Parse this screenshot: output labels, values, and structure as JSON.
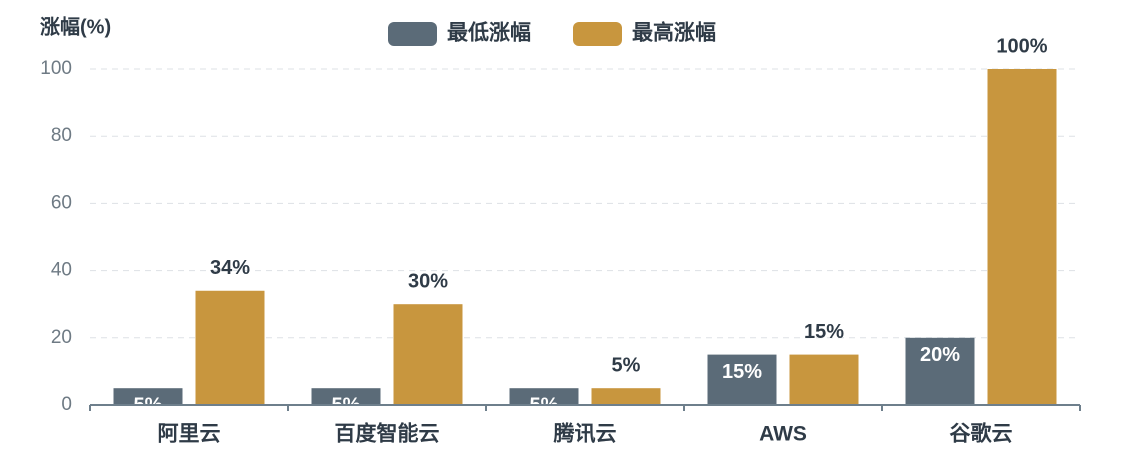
{
  "chart_data": {
    "type": "bar",
    "y_label": "涨幅(%)",
    "categories": [
      "阿里云",
      "百度智能云",
      "腾讯云",
      "AWS",
      "谷歌云"
    ],
    "series": [
      {
        "name": "最低涨幅",
        "color": "#5b6b78",
        "values": [
          5,
          5,
          5,
          15,
          20
        ],
        "value_labels": [
          "5%",
          "5%",
          "5%",
          "15%",
          "20%"
        ]
      },
      {
        "name": "最高涨幅",
        "color": "#c8963e",
        "values": [
          34,
          30,
          5,
          15,
          100
        ],
        "value_labels": [
          "34%",
          "30%",
          "5%",
          "15%",
          "100%"
        ]
      }
    ],
    "ylim": [
      0,
      100
    ],
    "yticks": [
      0,
      20,
      40,
      60,
      80,
      100
    ],
    "grid": true
  }
}
